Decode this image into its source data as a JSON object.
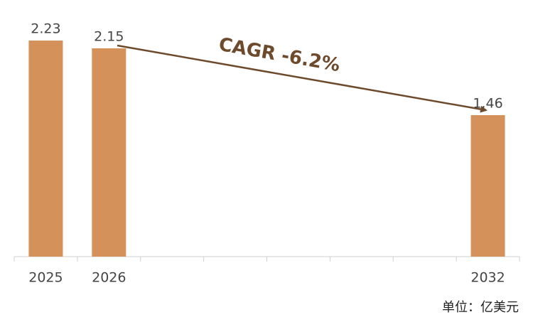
{
  "chart_data": {
    "type": "bar",
    "categories": [
      "2025",
      "2026",
      null,
      null,
      null,
      null,
      null,
      "2032"
    ],
    "values": [
      2.23,
      2.15,
      null,
      null,
      null,
      null,
      null,
      1.46
    ],
    "color": "#d4925a",
    "annotation": "CAGR  -6.2%",
    "unit_note": "单位：亿美元"
  }
}
